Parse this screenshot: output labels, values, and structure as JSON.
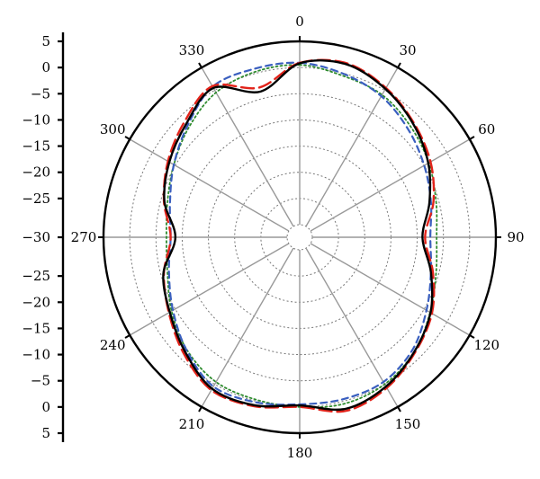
{
  "chart_data": {
    "type": "polar-line",
    "title": "",
    "angle_unit": "degrees",
    "angle_direction": "clockwise",
    "angle_zero": "top",
    "angle_ticks": [
      0,
      30,
      60,
      90,
      120,
      150,
      180,
      210,
      240,
      270,
      300,
      330
    ],
    "angle_tick_labels": [
      "0",
      "30",
      "60",
      "90",
      "120",
      "150",
      "180",
      "210",
      "240",
      "270",
      "300",
      "330"
    ],
    "radial_range": [
      -30,
      5
    ],
    "radial_rings": [
      -25,
      -20,
      -15,
      -10,
      -5,
      0,
      5
    ],
    "radial_axis_tick_labels": [
      "5",
      "0",
      "−5",
      "−10",
      "−15",
      "−20",
      "−25",
      "−30",
      "−25",
      "−20",
      "−15",
      "−10",
      "−5",
      "0",
      "5"
    ],
    "grid": true,
    "legend": "none",
    "series": [
      {
        "color": "#000000",
        "style": "solid",
        "theta": [
          0,
          15,
          30,
          45,
          60,
          75,
          90,
          105,
          120,
          135,
          150,
          165,
          180,
          195,
          210,
          225,
          240,
          255,
          270,
          285,
          300,
          315,
          330,
          345
        ],
        "r": [
          0.8,
          1.8,
          0.3,
          -1.8,
          -4.1,
          -6.8,
          -9.0,
          -6.5,
          -3.6,
          -1.5,
          0.5,
          1.5,
          -0.3,
          0.8,
          1.0,
          -1.5,
          -3.8,
          -5.5,
          -8.7,
          -5.7,
          -3.7,
          -1.8,
          0.5,
          -3.6
        ]
      },
      {
        "color": "#e2231a",
        "style": "long-dash",
        "theta": [
          0,
          15,
          30,
          45,
          60,
          75,
          90,
          105,
          120,
          135,
          150,
          165,
          180,
          195,
          210,
          225,
          240,
          255,
          270,
          285,
          300,
          315,
          330,
          345
        ],
        "r": [
          0.9,
          2.0,
          0.5,
          -1.6,
          -3.6,
          -6.0,
          -8.5,
          -6.1,
          -3.3,
          -1.3,
          0.8,
          1.9,
          0.0,
          1.0,
          1.3,
          -1.1,
          -3.6,
          -5.6,
          -7.8,
          -5.6,
          -3.4,
          -1.3,
          0.9,
          -2.8
        ]
      },
      {
        "color": "#3a5fbf",
        "style": "dash",
        "theta": [
          0,
          15,
          30,
          45,
          60,
          75,
          90,
          105,
          120,
          135,
          150,
          165,
          180,
          195,
          210,
          225,
          240,
          255,
          270,
          285,
          300,
          315,
          330,
          345
        ],
        "r": [
          0.9,
          -0.1,
          -1.3,
          -3.2,
          -5.0,
          -6.5,
          -7.5,
          -6.5,
          -4.5,
          -2.0,
          -0.5,
          -0.4,
          -0.5,
          0.2,
          0.5,
          -1.9,
          -4.5,
          -6.6,
          -7.8,
          -6.8,
          -4.7,
          -2.2,
          0.8,
          0.9
        ]
      },
      {
        "color": "#2e8b2e",
        "style": "dot",
        "theta": [
          0,
          15,
          30,
          45,
          60,
          75,
          90,
          105,
          120,
          135,
          150,
          165,
          180,
          195,
          210,
          225,
          240,
          255,
          270,
          285,
          300,
          315,
          330,
          345
        ],
        "r": [
          0.5,
          -0.5,
          -1.0,
          -2.5,
          -4.0,
          -5.5,
          -6.3,
          -5.5,
          -3.7,
          -1.5,
          0.0,
          0.5,
          0.0,
          -0.3,
          -0.5,
          -2.0,
          -4.2,
          -6.3,
          -7.0,
          -6.3,
          -4.7,
          -2.6,
          -0.5,
          0.3
        ]
      }
    ]
  }
}
